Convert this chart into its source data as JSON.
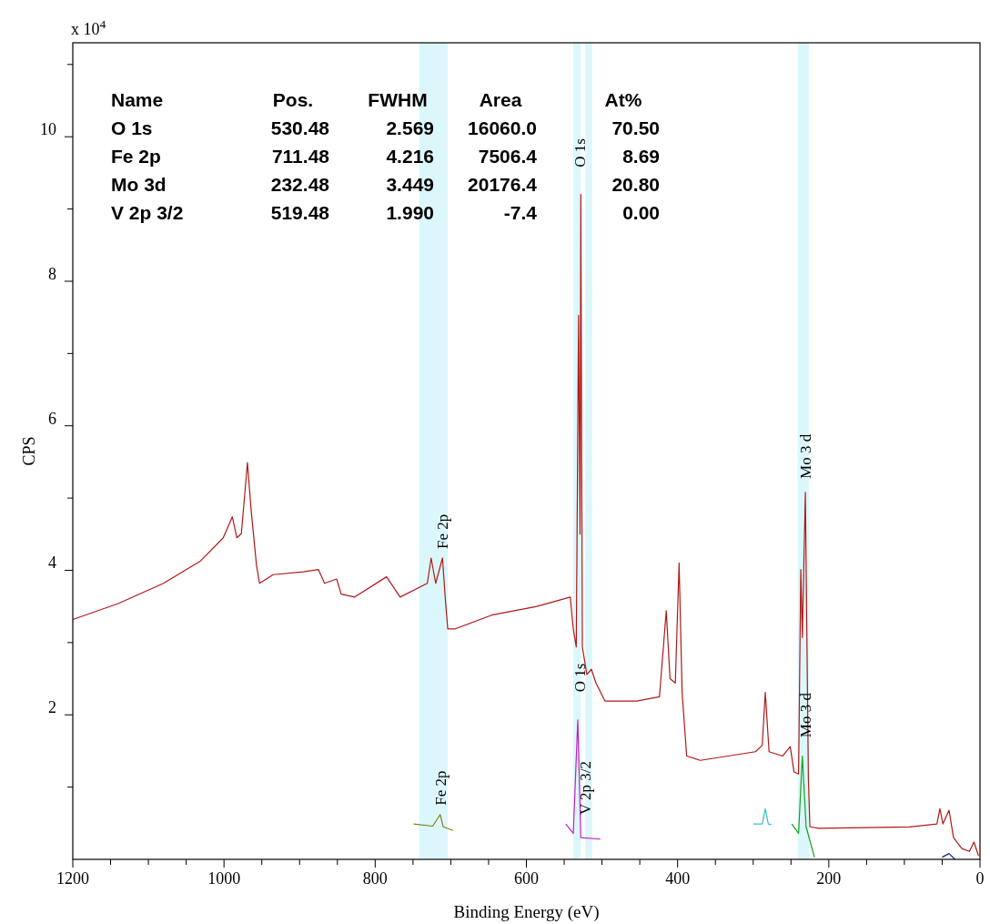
{
  "chart_data": {
    "type": "line",
    "xlabel": "Binding Energy (eV)",
    "ylabel": "CPS",
    "xlim": [
      1200,
      0
    ],
    "ylim": [
      0,
      11.3
    ],
    "xticks": [
      1200,
      {
        "value": 1150,
        "label": null
      },
      {
        "value": 1100,
        "label": null
      },
      {
        "value": 1050,
        "label": null
      },
      1000,
      {
        "value": 950,
        "label": null
      },
      {
        "value": 900,
        "label": null
      },
      {
        "value": 850,
        "label": null
      },
      800,
      {
        "value": 750,
        "label": null
      },
      {
        "value": 700,
        "label": null
      },
      {
        "value": 650,
        "label": null
      },
      600,
      {
        "value": 550,
        "label": null
      },
      {
        "value": 500,
        "label": null
      },
      {
        "value": 450,
        "label": null
      },
      400,
      {
        "value": 350,
        "label": null
      },
      {
        "value": 300,
        "label": null
      },
      {
        "value": 250,
        "label": null
      },
      200,
      {
        "value": 150,
        "label": null
      },
      {
        "value": 100,
        "label": null
      },
      {
        "value": 50,
        "label": null
      },
      0
    ],
    "yticks": [
      {
        "value": 1,
        "label": null
      },
      2,
      {
        "value": 3,
        "label": null
      },
      4,
      {
        "value": 5,
        "label": null
      },
      6,
      {
        "value": 7,
        "label": null
      },
      8,
      {
        "value": 9,
        "label": null
      },
      10,
      {
        "value": 11,
        "label": null
      }
    ],
    "grid": false,
    "marker": "none",
    "line_style": "solid",
    "bands": [
      {
        "axis": "x",
        "from": 742,
        "to": 704,
        "color": "#dcf7fb"
      },
      {
        "axis": "x",
        "from": 538,
        "to": 528,
        "color": "#dcf7fb"
      },
      {
        "axis": "x",
        "from": 522,
        "to": 513,
        "color": "#dcf7fb"
      },
      {
        "axis": "x",
        "from": 241,
        "to": 226,
        "color": "#dcf7fb"
      }
    ],
    "series": [
      {
        "color": "#b01818",
        "x": [
          1200,
          1140,
          1080,
          1031,
          1001,
          989,
          983,
          977,
          969,
          964,
          957,
          953,
          935,
          895,
          875,
          867,
          851,
          845,
          827,
          785,
          767,
          731,
          726,
          720,
          711,
          707,
          704,
          694,
          646,
          586,
          542,
          538,
          534,
          531,
          529,
          528,
          526,
          520,
          514,
          508,
          496,
          454,
          424,
          415,
          410,
          403,
          398,
          394,
          388,
          370,
          297,
          288,
          284,
          279,
          261,
          251,
          246,
          240,
          237,
          235,
          231,
          227,
          225,
          213,
          93,
          57,
          53,
          49,
          41,
          35,
          24,
          14,
          8,
          2
        ],
        "values": [
          3.32,
          3.54,
          3.82,
          4.13,
          4.45,
          4.74,
          4.45,
          4.51,
          5.49,
          4.82,
          4.07,
          3.82,
          3.94,
          3.98,
          4.01,
          3.82,
          3.88,
          3.67,
          3.63,
          3.91,
          3.63,
          3.82,
          4.17,
          3.82,
          4.17,
          3.57,
          3.19,
          3.19,
          3.38,
          3.5,
          3.63,
          3.19,
          2.94,
          7.53,
          4.5,
          9.2,
          2.94,
          2.56,
          2.63,
          2.44,
          2.19,
          2.19,
          2.25,
          3.44,
          2.5,
          2.44,
          4.1,
          2.31,
          1.43,
          1.37,
          1.49,
          1.58,
          2.31,
          1.49,
          1.43,
          1.56,
          1.21,
          1.18,
          4.01,
          3.07,
          5.08,
          1.12,
          0.45,
          0.43,
          0.45,
          0.49,
          0.7,
          0.49,
          0.68,
          0.3,
          0.15,
          0.11,
          0.24,
          0.05
        ]
      },
      {
        "color": "#808010",
        "x": [
          749,
          724,
          714,
          710,
          697
        ],
        "values": [
          0.49,
          0.46,
          0.62,
          0.45,
          0.4
        ]
      },
      {
        "color": "#c020c0",
        "x": [
          548,
          538,
          532,
          528,
          502
        ],
        "values": [
          0.49,
          0.36,
          1.93,
          0.3,
          0.28
        ]
      },
      {
        "color": "#10a020",
        "x": [
          249,
          240,
          235,
          230,
          219
        ],
        "values": [
          0.49,
          0.36,
          1.43,
          0.45,
          0.03
        ]
      },
      {
        "color": "#30c0c8",
        "x": [
          300,
          288,
          284,
          280,
          276
        ],
        "values": [
          0.49,
          0.49,
          0.7,
          0.49,
          0.48
        ]
      },
      {
        "color": "#1020a0",
        "x": [
          50,
          41,
          33
        ],
        "values": [
          0.03,
          0.08,
          0
        ]
      }
    ],
    "annotations": [
      "x 10$^{4}$",
      "Name",
      "Pos.",
      "FWHM",
      "Area",
      "At%",
      "O 1s",
      "530.48",
      "2.569",
      "16060.0",
      "70.50",
      "Fe 2p",
      "711.48",
      "4.216",
      "7506.4",
      "8.69",
      "Mo 3d",
      "232.48",
      "3.449",
      "20176.4",
      "20.80",
      "V 2p 3/2",
      "519.48",
      "1.990",
      "-7.4",
      "0.00",
      {
        "text": "Fe 2p",
        "x": 711,
        "y": 4.17
      },
      {
        "text": "O 1s",
        "x": 530,
        "y": 9.45
      },
      {
        "text": "Mo 3 d",
        "x": 231,
        "y": 5.14
      },
      {
        "text": "Fe 2p",
        "x": 714,
        "y": 0.62
      },
      {
        "text": "O 1s",
        "x": 530,
        "y": 2.19
      },
      {
        "text": "V 2p 3/2",
        "x": 522,
        "y": 0.49
      },
      {
        "text": "Mo 3 d",
        "x": 231,
        "y": 1.56
      }
    ]
  }
}
